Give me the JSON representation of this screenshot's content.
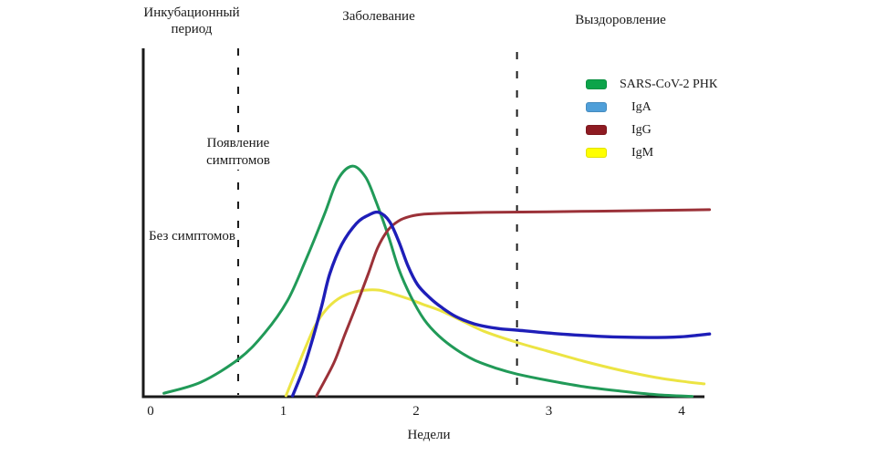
{
  "page": {
    "background": "#ffffff",
    "text_color": "#1a1a1a"
  },
  "phases": {
    "incubation": "Инкубационный период",
    "illness": "Заболевание",
    "recovery": "Выздоровление"
  },
  "annotations": {
    "symptom_onset": "Появление симптомов",
    "no_symptoms": "Без симптомов"
  },
  "legend": {
    "position": "upper-right",
    "items": [
      {
        "label": "SARS-CoV-2 РНК",
        "swatch_color": "#0ca44a"
      },
      {
        "label": "IgA",
        "swatch_color": "#4f9fd9"
      },
      {
        "label": "IgG",
        "swatch_color": "#8e1b22"
      },
      {
        "label": "IgM",
        "swatch_color": "#ffff00"
      }
    ]
  },
  "chart_data": {
    "type": "line",
    "title": "",
    "xlabel": "Недели",
    "ylabel": "",
    "x_ticks": [
      0,
      1,
      2,
      3,
      4
    ],
    "x_range": [
      0,
      4.25
    ],
    "y_range_relative": [
      0,
      1
    ],
    "grid": false,
    "axis_color": "#1a1a1a",
    "dashed_guides_weeks": [
      0.66,
      2.76
    ],
    "dashed_guide_color": "#1a1a1a",
    "series": [
      {
        "name": "IgM",
        "color": "#ece443",
        "width": 3,
        "points": [
          [
            1.02,
            0.003
          ],
          [
            1.1,
            0.079
          ],
          [
            1.17,
            0.144
          ],
          [
            1.24,
            0.204
          ],
          [
            1.32,
            0.249
          ],
          [
            1.41,
            0.28
          ],
          [
            1.51,
            0.298
          ],
          [
            1.62,
            0.306
          ],
          [
            1.72,
            0.306
          ],
          [
            1.82,
            0.296
          ],
          [
            1.95,
            0.28
          ],
          [
            2.06,
            0.264
          ],
          [
            2.19,
            0.246
          ],
          [
            2.35,
            0.217
          ],
          [
            2.51,
            0.188
          ],
          [
            2.75,
            0.157
          ],
          [
            2.99,
            0.131
          ],
          [
            3.26,
            0.102
          ],
          [
            3.54,
            0.076
          ],
          [
            3.81,
            0.055
          ],
          [
            4.05,
            0.042
          ],
          [
            4.17,
            0.037
          ]
        ]
      },
      {
        "name": "SARS-CoV-2 РНК",
        "color": "#219a58",
        "width": 3,
        "points": [
          [
            0.1,
            0.01
          ],
          [
            0.38,
            0.042
          ],
          [
            0.67,
            0.11
          ],
          [
            0.86,
            0.183
          ],
          [
            1.03,
            0.275
          ],
          [
            1.17,
            0.393
          ],
          [
            1.31,
            0.524
          ],
          [
            1.41,
            0.623
          ],
          [
            1.52,
            0.662
          ],
          [
            1.62,
            0.63
          ],
          [
            1.7,
            0.558
          ],
          [
            1.79,
            0.463
          ],
          [
            1.87,
            0.366
          ],
          [
            1.96,
            0.288
          ],
          [
            2.06,
            0.222
          ],
          [
            2.17,
            0.175
          ],
          [
            2.3,
            0.136
          ],
          [
            2.44,
            0.105
          ],
          [
            2.61,
            0.081
          ],
          [
            2.76,
            0.065
          ],
          [
            2.99,
            0.047
          ],
          [
            3.26,
            0.029
          ],
          [
            3.54,
            0.016
          ],
          [
            3.81,
            0.006
          ],
          [
            4.08,
            0.001
          ]
        ]
      },
      {
        "name": "IgG",
        "color": "#9b3138",
        "width": 3,
        "points": [
          [
            1.25,
            0.003
          ],
          [
            1.32,
            0.052
          ],
          [
            1.39,
            0.105
          ],
          [
            1.46,
            0.175
          ],
          [
            1.55,
            0.262
          ],
          [
            1.64,
            0.353
          ],
          [
            1.71,
            0.427
          ],
          [
            1.79,
            0.479
          ],
          [
            1.87,
            0.505
          ],
          [
            1.96,
            0.518
          ],
          [
            2.06,
            0.524
          ],
          [
            2.23,
            0.527
          ],
          [
            2.51,
            0.529
          ],
          [
            2.99,
            0.531
          ],
          [
            3.68,
            0.534
          ],
          [
            4.21,
            0.537
          ]
        ]
      },
      {
        "name": "IgA",
        "color": "#1e1eb8",
        "width": 3.4,
        "points": [
          [
            1.07,
            0.003
          ],
          [
            1.15,
            0.079
          ],
          [
            1.22,
            0.165
          ],
          [
            1.29,
            0.262
          ],
          [
            1.35,
            0.353
          ],
          [
            1.44,
            0.437
          ],
          [
            1.55,
            0.497
          ],
          [
            1.64,
            0.521
          ],
          [
            1.72,
            0.529
          ],
          [
            1.8,
            0.503
          ],
          [
            1.87,
            0.445
          ],
          [
            1.94,
            0.374
          ],
          [
            2.01,
            0.322
          ],
          [
            2.1,
            0.285
          ],
          [
            2.19,
            0.257
          ],
          [
            2.3,
            0.23
          ],
          [
            2.44,
            0.209
          ],
          [
            2.61,
            0.196
          ],
          [
            2.76,
            0.191
          ],
          [
            3.06,
            0.181
          ],
          [
            3.4,
            0.173
          ],
          [
            3.75,
            0.17
          ],
          [
            3.99,
            0.172
          ],
          [
            4.21,
            0.18
          ]
        ]
      }
    ]
  }
}
